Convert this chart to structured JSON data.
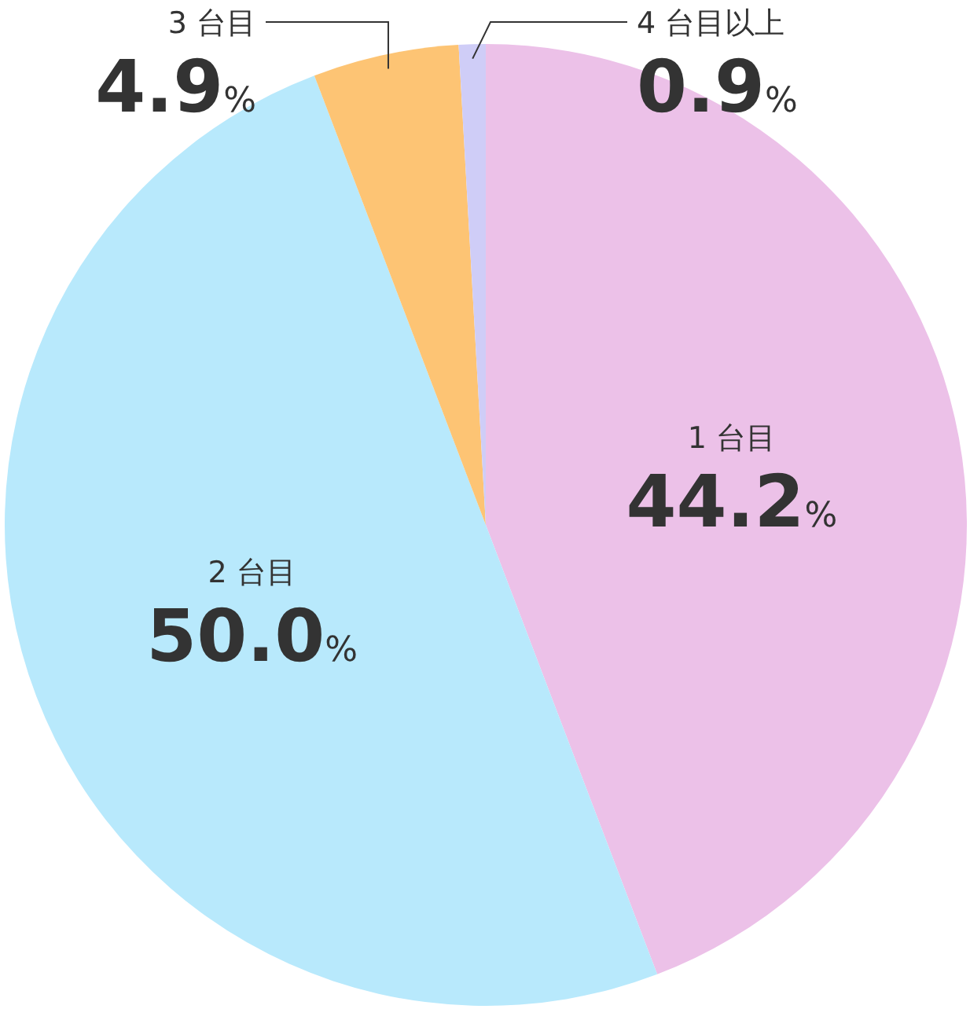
{
  "chart_data": {
    "type": "pie",
    "categories": [
      "1 台目",
      "2 台目",
      "3 台目",
      "4 台目以上"
    ],
    "values": [
      44.2,
      50.0,
      4.9,
      0.9
    ],
    "value_labels": [
      "44.2%",
      "50.0%",
      "4.9%",
      "0.9%"
    ],
    "colors": [
      "#ecc1e8",
      "#b8e9fc",
      "#fdc474",
      "#cfcdf7"
    ]
  }
}
